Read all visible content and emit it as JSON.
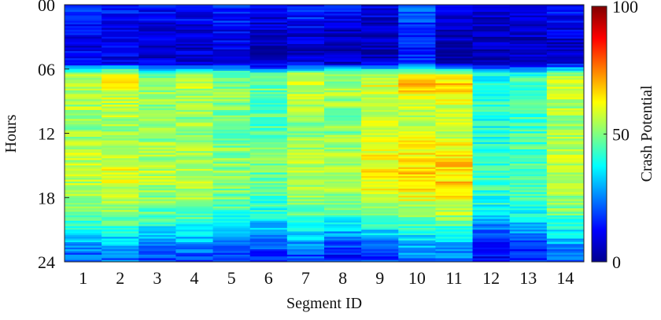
{
  "chart_data": {
    "type": "heatmap",
    "title": "",
    "xlabel": "Segment ID",
    "ylabel": "Hours",
    "x_categories": [
      "1",
      "2",
      "3",
      "4",
      "5",
      "6",
      "7",
      "8",
      "9",
      "10",
      "11",
      "12",
      "13",
      "14"
    ],
    "y_ticks": [
      "00",
      "06",
      "12",
      "18",
      "24"
    ],
    "y_range": [
      0,
      24
    ],
    "colorbar": {
      "label": "Crash Potential",
      "ticks": [
        "0",
        "50",
        "100"
      ],
      "range": [
        0,
        100
      ],
      "colormap": "jet",
      "colors": [
        "#00008f",
        "#0000ff",
        "#0080ff",
        "#00ffff",
        "#80ff80",
        "#ffff00",
        "#ff8000",
        "#ff0000",
        "#800000"
      ]
    },
    "row_hours": [
      0,
      1,
      2,
      3,
      4,
      5,
      6,
      7,
      8,
      9,
      10,
      11,
      12,
      13,
      14,
      15,
      16,
      17,
      18,
      19,
      20,
      21,
      22,
      23
    ],
    "values": [
      [
        16,
        14,
        13,
        14,
        16,
        11,
        15,
        13,
        10,
        22,
        10,
        9,
        12,
        14
      ],
      [
        13,
        12,
        10,
        11,
        15,
        8,
        14,
        11,
        8,
        18,
        8,
        6,
        10,
        11
      ],
      [
        12,
        11,
        8,
        9,
        11,
        6,
        9,
        7,
        6,
        16,
        6,
        5,
        8,
        8
      ],
      [
        11,
        10,
        7,
        8,
        10,
        5,
        8,
        6,
        5,
        15,
        5,
        4,
        6,
        7
      ],
      [
        10,
        9,
        6,
        7,
        9,
        4,
        7,
        5,
        4,
        14,
        4,
        3,
        5,
        6
      ],
      [
        13,
        12,
        9,
        10,
        8,
        6,
        9,
        8,
        9,
        15,
        8,
        5,
        7,
        10
      ],
      [
        55,
        62,
        50,
        52,
        48,
        45,
        55,
        52,
        58,
        60,
        58,
        38,
        42,
        55
      ],
      [
        57,
        63,
        52,
        56,
        50,
        47,
        56,
        54,
        60,
        72,
        70,
        40,
        44,
        56
      ],
      [
        55,
        58,
        53,
        55,
        50,
        48,
        55,
        53,
        58,
        62,
        60,
        42,
        45,
        55
      ],
      [
        54,
        56,
        52,
        54,
        49,
        46,
        54,
        52,
        57,
        58,
        57,
        41,
        44,
        54
      ],
      [
        53,
        55,
        51,
        52,
        48,
        46,
        53,
        51,
        56,
        57,
        56,
        41,
        43,
        53
      ],
      [
        53,
        54,
        51,
        52,
        47,
        45,
        52,
        50,
        56,
        58,
        57,
        40,
        43,
        53
      ],
      [
        54,
        55,
        52,
        53,
        48,
        46,
        53,
        51,
        57,
        60,
        59,
        41,
        44,
        54
      ],
      [
        55,
        56,
        53,
        54,
        50,
        47,
        54,
        52,
        59,
        63,
        62,
        42,
        45,
        55
      ],
      [
        56,
        58,
        54,
        55,
        51,
        48,
        55,
        53,
        61,
        65,
        65,
        43,
        46,
        56
      ],
      [
        57,
        60,
        55,
        56,
        52,
        48,
        56,
        54,
        63,
        66,
        67,
        44,
        47,
        57
      ],
      [
        56,
        58,
        54,
        55,
        51,
        47,
        55,
        53,
        62,
        65,
        66,
        43,
        46,
        56
      ],
      [
        55,
        57,
        53,
        54,
        50,
        46,
        54,
        52,
        60,
        63,
        64,
        42,
        45,
        55
      ],
      [
        52,
        54,
        50,
        51,
        47,
        43,
        51,
        48,
        57,
        58,
        60,
        40,
        42,
        52
      ],
      [
        48,
        50,
        46,
        47,
        42,
        39,
        47,
        44,
        50,
        52,
        54,
        36,
        38,
        47
      ],
      [
        42,
        44,
        40,
        41,
        35,
        33,
        40,
        35,
        40,
        44,
        46,
        28,
        32,
        40
      ],
      [
        35,
        36,
        33,
        34,
        28,
        26,
        33,
        28,
        32,
        36,
        38,
        20,
        26,
        34
      ],
      [
        28,
        30,
        26,
        27,
        22,
        20,
        26,
        20,
        24,
        30,
        30,
        14,
        20,
        27
      ],
      [
        22,
        24,
        20,
        21,
        17,
        15,
        20,
        15,
        18,
        26,
        24,
        11,
        15,
        21
      ]
    ]
  }
}
